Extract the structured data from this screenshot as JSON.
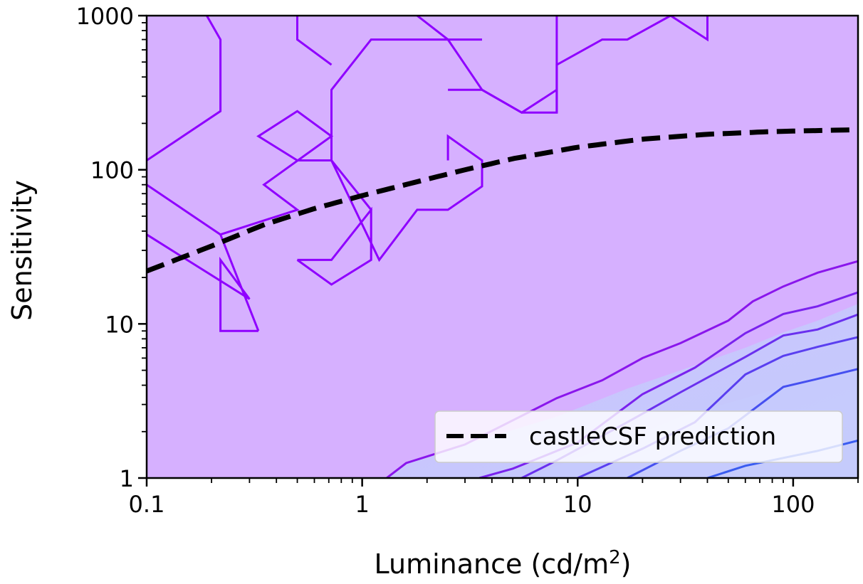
{
  "chart_data": {
    "type": "line",
    "title": "",
    "xlabel": "Luminance (cd/m",
    "xlabel_sup": "2",
    "xlabel_close": ")",
    "ylabel": "Sensitivity",
    "xscale": "log",
    "yscale": "log",
    "xlim": [
      0.1,
      200
    ],
    "ylim": [
      1,
      1000
    ],
    "x_ticks": [
      {
        "value": 0.1,
        "label": "0.1"
      },
      {
        "value": 1,
        "label": "1"
      },
      {
        "value": 10,
        "label": "10"
      },
      {
        "value": 100,
        "label": "100"
      }
    ],
    "y_ticks": [
      {
        "value": 1,
        "label": "1"
      },
      {
        "value": 10,
        "label": "10"
      },
      {
        "value": 100,
        "label": "100"
      },
      {
        "value": 1000,
        "label": "1000"
      }
    ],
    "grid": false,
    "legend": {
      "position": "lower-right",
      "entries": [
        "castleCSF prediction"
      ]
    },
    "series": [
      {
        "name": "castleCSF prediction",
        "style": "dashed",
        "color": "#000000",
        "x": [
          0.1,
          0.2,
          0.35,
          0.6,
          1,
          1.7,
          3,
          5,
          10,
          20,
          40,
          80,
          200
        ],
        "y": [
          22,
          32,
          44,
          56,
          68,
          82,
          100,
          118,
          140,
          158,
          170,
          177,
          182
        ]
      }
    ],
    "filled_regions": [
      {
        "color": "#d6b0ff",
        "x": [
          0.1,
          200
        ],
        "y_upper": [
          1000,
          1000
        ]
      },
      {
        "color": "#c8c2ff",
        "x": [
          1.3,
          1.6,
          3,
          8,
          17,
          30,
          60,
          90,
          130,
          200
        ],
        "y": [
          1,
          1.25,
          1.65,
          2.5,
          3.8,
          5.0,
          7.0,
          8.8,
          10.5,
          13.5
        ]
      },
      {
        "color": "#c6cbfd",
        "x": [
          6,
          8,
          17,
          30,
          60,
          90,
          130,
          200
        ],
        "y": [
          1,
          1.2,
          1.8,
          2.5,
          3.3,
          3.9,
          4.3,
          5
        ]
      }
    ],
    "contours": [
      {
        "color": "#8a16ec",
        "x": [
          1.3,
          1.6,
          3,
          8,
          13,
          20,
          30,
          50,
          65,
          90,
          130,
          200
        ],
        "y": [
          1,
          1.25,
          1.65,
          3.3,
          4.3,
          6,
          7.5,
          10.5,
          14,
          17.5,
          21.5,
          25.5
        ]
      },
      {
        "color": "#7a22ee",
        "x": [
          3.5,
          5,
          10,
          20,
          35,
          60,
          90,
          130,
          200
        ],
        "y": [
          1,
          1.15,
          1.7,
          3.5,
          5.2,
          8.7,
          11.6,
          13,
          16
        ]
      },
      {
        "color": "#6a30ef",
        "x": [
          5.5,
          8,
          17,
          30,
          60,
          90,
          130,
          200
        ],
        "y": [
          1,
          1.3,
          2.3,
          3.6,
          6.1,
          8.4,
          9.2,
          11.5
        ]
      },
      {
        "color": "#5a3ff0",
        "x": [
          10,
          20,
          35,
          60,
          90,
          130,
          200
        ],
        "y": [
          1,
          1.55,
          2.3,
          4.7,
          6.2,
          7.1,
          8.2
        ]
      },
      {
        "color": "#4650f0",
        "x": [
          17,
          30,
          50,
          90,
          130,
          200
        ],
        "y": [
          1,
          1.5,
          2.1,
          3.9,
          4.4,
          5.1
        ]
      },
      {
        "color": "#3a5cf0",
        "x": [
          40,
          60,
          130,
          200
        ],
        "y": [
          1,
          1.2,
          1.5,
          1.75
        ]
      },
      {
        "color": "#8f00ff",
        "x": [
          0.1,
          0.22,
          0.22,
          0.19
        ],
        "y": [
          115,
          240,
          700,
          1000
        ]
      },
      {
        "color": "#8f00ff",
        "x": [
          0.1,
          0.22,
          0.33
        ],
        "y": [
          80,
          38,
          9
        ]
      },
      {
        "color": "#8f00ff",
        "x": [
          0.1,
          0.3,
          0.22,
          0.22,
          0.33
        ],
        "y": [
          38,
          14.5,
          26,
          9,
          9
        ]
      },
      {
        "color": "#8f00ff",
        "x": [
          0.22,
          0.5,
          0.35,
          0.72,
          0.5,
          0.33,
          0.5
        ],
        "y": [
          38,
          55,
          80,
          165,
          240,
          165,
          115
        ]
      },
      {
        "color": "#8f00ff",
        "x": [
          0.5,
          0.72,
          1.2,
          1.8,
          2.5,
          3.6,
          3.6,
          2.5,
          2.5
        ],
        "y": [
          115,
          115,
          26,
          55,
          55,
          78,
          115,
          165,
          115
        ]
      },
      {
        "color": "#8f00ff",
        "x": [
          0.5,
          0.72,
          1.1,
          1.1,
          0.72,
          0.5,
          0.72,
          1.1,
          0.72,
          0.72,
          1.1,
          1.8,
          3.6
        ],
        "y": [
          26,
          18,
          26,
          55,
          26,
          26,
          26,
          55,
          115,
          330,
          700,
          700,
          700
        ]
      },
      {
        "color": "#8f00ff",
        "x": [
          0.72,
          0.72,
          0.5,
          0.5
        ],
        "y": [
          480,
          480,
          700,
          1000
        ]
      },
      {
        "color": "#8f00ff",
        "x": [
          1.8,
          2.5,
          3.6,
          5.5,
          8,
          8,
          8,
          13,
          17,
          27,
          40,
          40
        ],
        "y": [
          1000,
          700,
          330,
          235,
          330,
          235,
          480,
          700,
          700,
          1000,
          700,
          1000
        ]
      },
      {
        "color": "#8f00ff",
        "x": [
          2.5,
          3.6,
          5.5,
          8,
          8
        ],
        "y": [
          330,
          330,
          235,
          235,
          1000
        ]
      }
    ]
  }
}
